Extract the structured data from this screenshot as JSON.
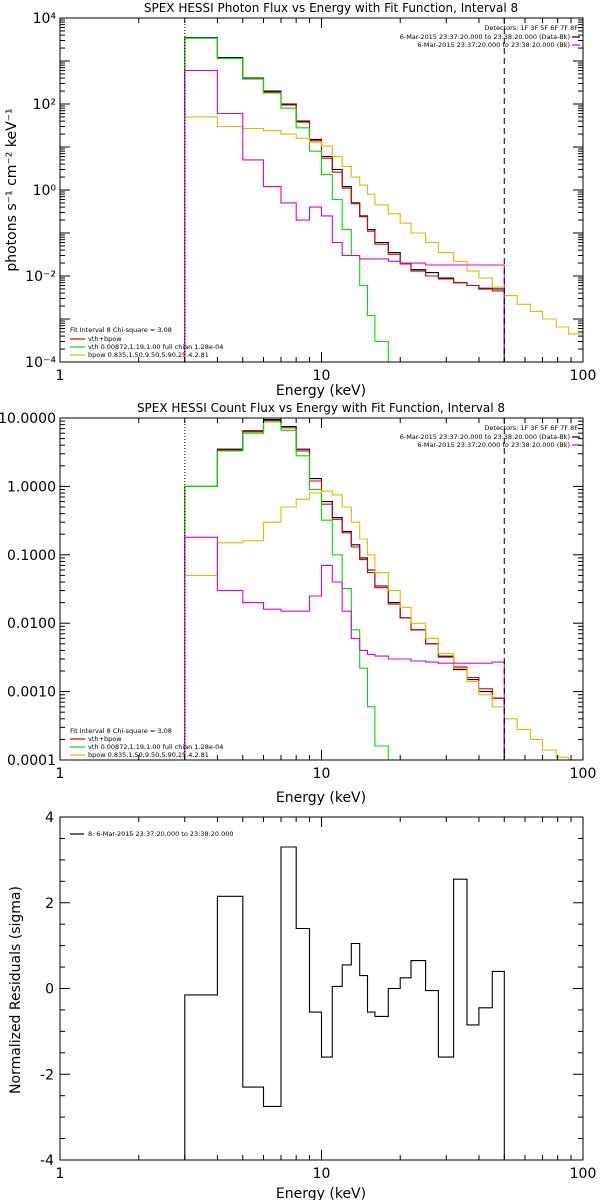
{
  "colors": {
    "total": "#000000",
    "fit_sum": "#dd0000",
    "vth": "#00dd00",
    "bpow": "#e6b800",
    "background": "#dd00dd",
    "residual": "#000000"
  },
  "chart_data": [
    {
      "type": "line",
      "title": "SPEX HESSI Photon Flux vs Energy with Fit Function, Interval 8",
      "xlabel": "Energy (keV)",
      "ylabel": "photons s⁻¹ cm⁻² keV⁻¹",
      "xscale": "log",
      "yscale": "log",
      "xlim": [
        1,
        100
      ],
      "ylim": [
        0.0001,
        10000
      ],
      "xticks": [
        "1",
        "10",
        "100"
      ],
      "yticks": [
        "10⁻⁴",
        "10⁻²",
        "10⁰",
        "10²",
        "10⁴"
      ],
      "legend_top_right": [
        "Detectors: 1F 3F 5F 6F 7F 8F",
        "6-Mar-2015 23:37:20.000 to 23:38:20.000 (Data-Bk)",
        "6-Mar-2015 23:37:20.000 to 23:38:20.000 (Bk)"
      ],
      "legend_bottom_left": [
        "Fit Interval 8   Chi-square = 3.08",
        "vth+bpow",
        "vth 0.00872,1.19,1.00  full chian 1.28e-04",
        "bpow 0.835,1.50,9.50,5.90,25.4,2.81"
      ],
      "vlines": [
        3,
        50
      ],
      "bin_edges": [
        3,
        4,
        5,
        6,
        7,
        8,
        9,
        10,
        11,
        12,
        13,
        14,
        15,
        16,
        18,
        20,
        22,
        25,
        28,
        32,
        36,
        40,
        45,
        50,
        56,
        63,
        70,
        79,
        88,
        100
      ],
      "series": [
        {
          "name": "Data-Bk",
          "role": "total",
          "values": [
            3500,
            1200,
            400,
            200,
            100,
            40,
            15,
            6,
            3,
            1.2,
            0.5,
            0.25,
            0.12,
            0.06,
            0.035,
            0.02,
            0.014,
            0.012,
            0.009,
            0.007,
            0.006,
            0.005,
            0.005
          ]
        },
        {
          "name": "vth+bpow",
          "role": "fit_sum",
          "values": [
            3400,
            1150,
            390,
            190,
            95,
            38,
            14,
            5.5,
            2.6,
            1.1,
            0.48,
            0.24,
            0.11,
            0.055,
            0.032,
            0.019,
            0.013,
            0.01,
            0.0085,
            0.007,
            0.006,
            0.0052,
            0.0045
          ]
        },
        {
          "name": "vth",
          "role": "vth",
          "values": [
            3400,
            1150,
            380,
            180,
            80,
            28,
            8,
            2.3,
            0.6,
            0.12,
            0.03,
            0.006,
            0.0012,
            0.0003,
            8e-05
          ]
        },
        {
          "name": "bpow",
          "role": "bpow",
          "values": [
            50,
            30,
            27,
            24,
            20,
            16,
            13,
            10.5,
            6,
            3.5,
            2,
            1.3,
            0.8,
            0.45,
            0.28,
            0.17,
            0.1,
            0.06,
            0.035,
            0.022,
            0.013,
            0.009,
            0.0055,
            0.0035,
            0.0022,
            0.0015,
            0.001,
            0.00065,
            0.00045
          ]
        },
        {
          "name": "Bk",
          "role": "background",
          "values": [
            600,
            60,
            5,
            1.2,
            0.5,
            0.2,
            0.4,
            0.25,
            0.06,
            0.03,
            0.03,
            0.025,
            0.025,
            0.025,
            0.022,
            0.02,
            0.02,
            0.018,
            0.018,
            0.018,
            0.018,
            0.018,
            0.018
          ]
        }
      ]
    },
    {
      "type": "line",
      "title": "SPEX HESSI Count Flux vs Energy with Fit Function, Interval 8",
      "xlabel": "Energy (keV)",
      "ylabel": "",
      "xscale": "log",
      "yscale": "log",
      "xlim": [
        1,
        100
      ],
      "ylim": [
        0.0001,
        10
      ],
      "xticks": [
        "1",
        "10",
        "100"
      ],
      "yticks": [
        "0.0001",
        "0.0010",
        "0.0100",
        "0.1000",
        "1.0000",
        "10.0000"
      ],
      "legend_top_right": [
        "Detectors: 1F 3F 5F 6F 7F 8F",
        "6-Mar-2015 23:37:20.000 to 23:38:20.000 (Data-Bk)",
        "6-Mar-2015 23:37:20.000 to 23:38:20.000 (Bk)"
      ],
      "legend_bottom_left": [
        "Fit Interval 8   Chi-square = 3.08",
        "vth+bpow",
        "vth 0.00872,1.19,1.00  full chian 1.28e-04",
        "bpow 0.835,1.50,9.50,5.90,25.4,2.81"
      ],
      "vlines": [
        3,
        50
      ],
      "bin_edges": [
        3,
        4,
        5,
        6,
        7,
        8,
        9,
        10,
        11,
        12,
        13,
        14,
        15,
        16,
        18,
        20,
        22,
        25,
        28,
        32,
        36,
        40,
        45,
        50,
        56,
        63,
        70,
        79,
        88,
        100
      ],
      "series": [
        {
          "name": "Data-Bk",
          "role": "total",
          "values": [
            1.0,
            3.5,
            6.5,
            9.5,
            7.5,
            3.5,
            1.3,
            0.6,
            0.35,
            0.22,
            0.14,
            0.09,
            0.06,
            0.035,
            0.02,
            0.012,
            0.008,
            0.005,
            0.0032,
            0.0021,
            0.0015,
            0.001,
            0.0008
          ]
        },
        {
          "name": "vth+bpow",
          "role": "fit_sum",
          "values": [
            1.0,
            3.4,
            6.3,
            9.2,
            7.2,
            3.3,
            1.2,
            0.55,
            0.33,
            0.21,
            0.13,
            0.085,
            0.055,
            0.033,
            0.019,
            0.012,
            0.008,
            0.005,
            0.0033,
            0.0023,
            0.0016,
            0.0011,
            0.0008
          ]
        },
        {
          "name": "vth",
          "role": "vth",
          "values": [
            1.0,
            3.3,
            6.0,
            8.8,
            6.6,
            2.8,
            0.9,
            0.32,
            0.1,
            0.032,
            0.008,
            0.0022,
            0.0006,
            0.00016,
            5e-05
          ]
        },
        {
          "name": "bpow",
          "role": "bpow",
          "values": [
            0.05,
            0.15,
            0.16,
            0.3,
            0.5,
            0.65,
            0.8,
            0.85,
            0.75,
            0.5,
            0.3,
            0.17,
            0.1,
            0.055,
            0.03,
            0.017,
            0.01,
            0.006,
            0.0036,
            0.0022,
            0.0014,
            0.0009,
            0.0006,
            0.0004,
            0.00028,
            0.0002,
            0.00014,
            0.00011,
            8e-05
          ]
        },
        {
          "name": "Bk",
          "role": "background",
          "values": [
            0.18,
            0.03,
            0.02,
            0.016,
            0.015,
            0.015,
            0.025,
            0.07,
            0.04,
            0.015,
            0.006,
            0.004,
            0.0035,
            0.0033,
            0.003,
            0.003,
            0.0028,
            0.0027,
            0.0026,
            0.0026,
            0.0026,
            0.0026,
            0.0027
          ]
        }
      ]
    },
    {
      "type": "line",
      "title": "",
      "xlabel": "Energy (keV)",
      "ylabel": "Normalized Residuals (sigma)",
      "xscale": "log",
      "yscale": "linear",
      "xlim": [
        1,
        100
      ],
      "ylim": [
        -4,
        4
      ],
      "xticks": [
        "1",
        "10",
        "100"
      ],
      "yticks": [
        "-4",
        "-2",
        "0",
        "2",
        "4"
      ],
      "legend": [
        "8.  6-Mar-2015 23:37:20.000 to 23:38:20.000"
      ],
      "bin_edges": [
        3,
        4,
        5,
        6,
        7,
        8,
        9,
        10,
        11,
        12,
        13,
        14,
        15,
        16,
        18,
        20,
        22,
        25,
        28,
        32,
        36,
        40,
        45,
        50
      ],
      "series": [
        {
          "name": "8",
          "role": "residual",
          "values": [
            -0.15,
            2.15,
            -2.3,
            -2.75,
            3.3,
            1.4,
            -0.55,
            -1.6,
            0.05,
            0.55,
            1.05,
            0.3,
            -0.55,
            -0.65,
            0.0,
            0.25,
            0.65,
            -0.05,
            -1.6,
            2.55,
            -0.85,
            -0.45,
            0.4
          ]
        }
      ]
    }
  ]
}
